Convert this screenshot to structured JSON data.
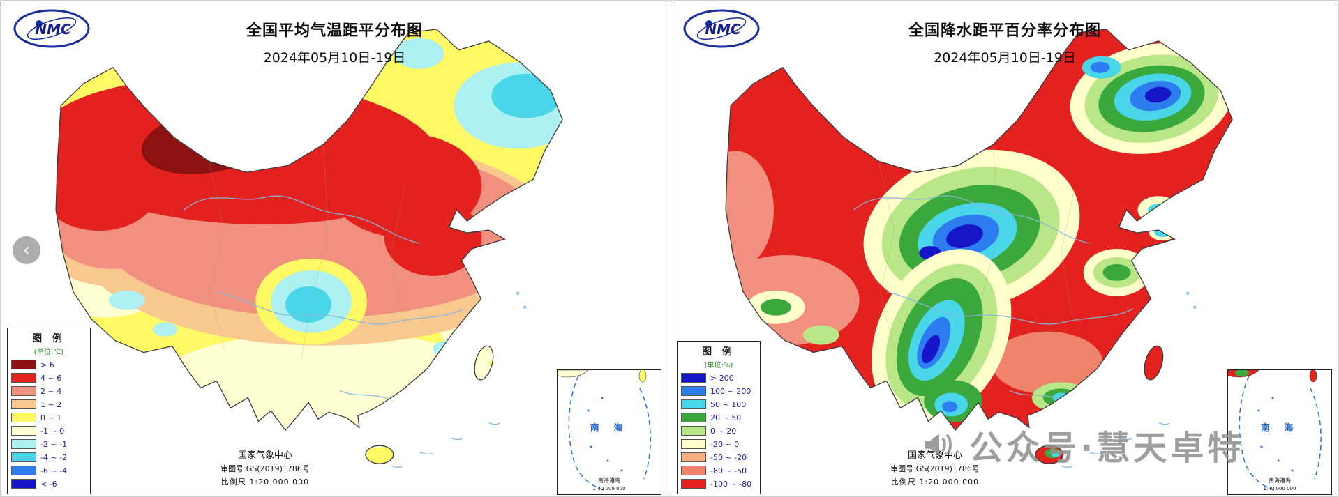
{
  "nav": {
    "prev": "‹"
  },
  "logo": {
    "text": "NMC"
  },
  "watermark": {
    "text": "公众号·慧天卓特",
    "icon": "megaphone-icon"
  },
  "maps": [
    {
      "title": "全国平均气温距平分布图",
      "date": "2024年05月10日-19日",
      "legend": {
        "title": "图 例",
        "unit": "(单位:℃)",
        "items": [
          {
            "label": "> 6",
            "color": "#8c1110"
          },
          {
            "label": "4 ~ 6",
            "color": "#e32220"
          },
          {
            "label": "2 ~ 4",
            "color": "#f2907f"
          },
          {
            "label": "1 ~ 2",
            "color": "#f9c88f"
          },
          {
            "label": "0 ~ 1",
            "color": "#fff966"
          },
          {
            "label": "-1 ~ 0",
            "color": "#ffffd2"
          },
          {
            "label": "-2 ~ -1",
            "color": "#aef0f2"
          },
          {
            "label": "-4 ~ -2",
            "color": "#49d6e8"
          },
          {
            "label": "-6 ~ -4",
            "color": "#2e7df0"
          },
          {
            "label": "< -6",
            "color": "#1616c8"
          }
        ]
      },
      "attribution": {
        "center": "国家气象中心",
        "license": "审图号:GS(2019)1786号",
        "scale": "比例尺 1:20 000 000"
      },
      "inset": {
        "sea_label": "南 海",
        "caption": "南海诸岛",
        "scale": "1:40 000 000"
      }
    },
    {
      "title": "全国降水距平百分率分布图",
      "date": "2024年05月10日-19日",
      "legend": {
        "title": "图 例",
        "unit": "(单位:%)",
        "items": [
          {
            "label": "> 200",
            "color": "#1616c8"
          },
          {
            "label": "100 ~ 200",
            "color": "#2e7df0"
          },
          {
            "label": "50 ~ 100",
            "color": "#49d6e8"
          },
          {
            "label": "20 ~ 50",
            "color": "#3aa83c"
          },
          {
            "label": "0 ~ 20",
            "color": "#b9e686"
          },
          {
            "label": "-20 ~ 0",
            "color": "#ffffcc"
          },
          {
            "label": "-50 ~ -20",
            "color": "#f7b183"
          },
          {
            "label": "-80 ~ -50",
            "color": "#f0836c"
          },
          {
            "label": "-100 ~ -80",
            "color": "#e32220"
          }
        ]
      },
      "attribution": {
        "center": "国家气象中心",
        "license": "审图号:GS(2019)1786号",
        "scale": "比例尺 1:20 000 000"
      },
      "inset": {
        "sea_label": "南 海",
        "caption": "南海诸岛",
        "scale": "1:40 000 000"
      }
    }
  ]
}
